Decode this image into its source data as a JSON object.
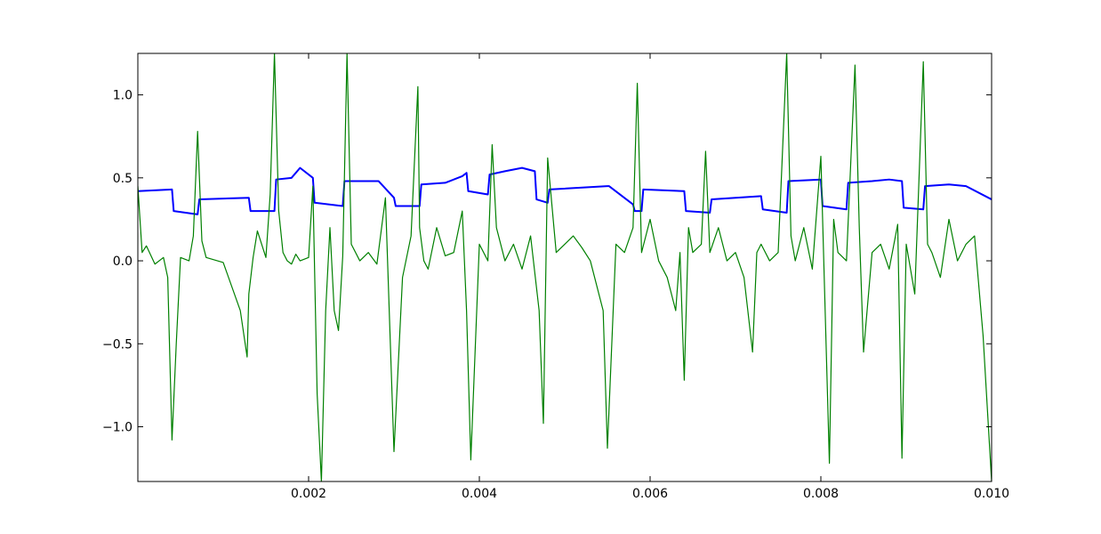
{
  "chart_data": {
    "type": "line",
    "title": "",
    "xlabel": "",
    "ylabel": "",
    "xlim": [
      0.0,
      0.01
    ],
    "ylim": [
      -1.33,
      1.25
    ],
    "grid": false,
    "x_ticks": [
      0.002,
      0.004,
      0.006,
      0.008,
      0.01
    ],
    "x_tick_labels": [
      "0.002",
      "0.004",
      "0.006",
      "0.008",
      "0.010"
    ],
    "y_ticks": [
      1.0,
      0.5,
      0.0,
      -0.5,
      -1.0
    ],
    "y_tick_labels": [
      "1.0",
      "0.5",
      "0.0",
      "−0.5",
      "−1.0"
    ],
    "series": [
      {
        "color": "#0000ff",
        "x": [
          0.0,
          0.0004,
          0.00042,
          0.0007,
          0.00072,
          0.0013,
          0.00132,
          0.0016,
          0.00162,
          0.0018,
          0.0019,
          0.00205,
          0.00207,
          0.0024,
          0.00242,
          0.0028,
          0.00282,
          0.003,
          0.00302,
          0.0033,
          0.00332,
          0.0036,
          0.0038,
          0.00385,
          0.00387,
          0.0041,
          0.00412,
          0.0043,
          0.0045,
          0.00465,
          0.00467,
          0.0048,
          0.00482,
          0.0055,
          0.00552,
          0.0058,
          0.00582,
          0.0059,
          0.00592,
          0.0064,
          0.00642,
          0.0067,
          0.00672,
          0.0073,
          0.00732,
          0.0076,
          0.00762,
          0.008,
          0.00802,
          0.0083,
          0.00832,
          0.0086,
          0.0088,
          0.00895,
          0.00897,
          0.0092,
          0.00922,
          0.0095,
          0.0097,
          0.01
        ],
        "y": [
          0.42,
          0.43,
          0.3,
          0.28,
          0.37,
          0.38,
          0.3,
          0.3,
          0.49,
          0.5,
          0.56,
          0.5,
          0.35,
          0.33,
          0.48,
          0.48,
          0.48,
          0.38,
          0.33,
          0.33,
          0.46,
          0.47,
          0.51,
          0.53,
          0.42,
          0.4,
          0.52,
          0.54,
          0.56,
          0.54,
          0.37,
          0.35,
          0.43,
          0.45,
          0.45,
          0.34,
          0.3,
          0.3,
          0.43,
          0.42,
          0.3,
          0.29,
          0.37,
          0.39,
          0.31,
          0.29,
          0.48,
          0.49,
          0.33,
          0.31,
          0.47,
          0.48,
          0.49,
          0.48,
          0.32,
          0.31,
          0.45,
          0.46,
          0.45,
          0.37
        ]
      },
      {
        "color": "#008000",
        "x": [
          0.0,
          5e-05,
          0.0001,
          0.0002,
          0.0003,
          0.00035,
          0.0004,
          0.00045,
          0.0005,
          0.0006,
          0.00065,
          0.0007,
          0.00075,
          0.0008,
          0.001,
          0.0012,
          0.00128,
          0.0013,
          0.00135,
          0.0014,
          0.0015,
          0.00155,
          0.0016,
          0.00165,
          0.0017,
          0.00175,
          0.0018,
          0.00185,
          0.0019,
          0.002,
          0.00205,
          0.0021,
          0.00215,
          0.0022,
          0.00225,
          0.0023,
          0.00235,
          0.0024,
          0.00245,
          0.0025,
          0.0026,
          0.0027,
          0.0028,
          0.0029,
          0.003,
          0.0031,
          0.0032,
          0.00328,
          0.0033,
          0.00335,
          0.0034,
          0.0035,
          0.0036,
          0.0037,
          0.0038,
          0.00385,
          0.0039,
          0.004,
          0.0041,
          0.00415,
          0.0042,
          0.0043,
          0.0044,
          0.0045,
          0.0046,
          0.0047,
          0.00475,
          0.0048,
          0.0049,
          0.005,
          0.0051,
          0.0052,
          0.0053,
          0.00545,
          0.0055,
          0.0056,
          0.0057,
          0.0058,
          0.00585,
          0.0059,
          0.006,
          0.0061,
          0.0062,
          0.0063,
          0.00635,
          0.0064,
          0.00645,
          0.0065,
          0.0066,
          0.00665,
          0.0067,
          0.0068,
          0.0069,
          0.007,
          0.0071,
          0.0072,
          0.00725,
          0.0073,
          0.0074,
          0.0075,
          0.0076,
          0.00765,
          0.0077,
          0.0078,
          0.0079,
          0.008,
          0.0081,
          0.00815,
          0.0082,
          0.0083,
          0.0084,
          0.00845,
          0.0085,
          0.0086,
          0.0087,
          0.0088,
          0.0089,
          0.00895,
          0.009,
          0.0091,
          0.0092,
          0.00925,
          0.0093,
          0.0094,
          0.0095,
          0.0096,
          0.0097,
          0.0098,
          0.0099,
          0.01
        ],
        "y": [
          0.45,
          0.05,
          0.09,
          -0.02,
          0.02,
          -0.1,
          -1.08,
          -0.5,
          0.02,
          0.0,
          0.15,
          0.78,
          0.12,
          0.02,
          -0.01,
          -0.3,
          -0.58,
          -0.2,
          0.02,
          0.18,
          0.02,
          0.4,
          1.25,
          0.3,
          0.05,
          0.0,
          -0.02,
          0.04,
          0.0,
          0.02,
          0.45,
          -0.8,
          -1.33,
          -0.3,
          0.2,
          -0.3,
          -0.42,
          0.03,
          1.25,
          0.1,
          0.0,
          0.05,
          -0.02,
          0.38,
          -1.15,
          -0.1,
          0.15,
          1.05,
          0.2,
          0.0,
          -0.05,
          0.2,
          0.03,
          0.05,
          0.3,
          -0.3,
          -1.2,
          0.1,
          0.0,
          0.7,
          0.2,
          0.0,
          0.1,
          -0.05,
          0.15,
          -0.3,
          -0.98,
          0.62,
          0.05,
          0.1,
          0.15,
          0.08,
          0.0,
          -0.3,
          -1.13,
          0.1,
          0.05,
          0.2,
          1.07,
          0.05,
          0.25,
          0.0,
          -0.1,
          -0.3,
          0.05,
          -0.72,
          0.2,
          0.05,
          0.1,
          0.66,
          0.05,
          0.2,
          0.0,
          0.05,
          -0.1,
          -0.55,
          0.05,
          0.1,
          0.0,
          0.05,
          1.25,
          0.15,
          0.0,
          0.2,
          -0.05,
          0.63,
          -1.22,
          0.25,
          0.05,
          0.0,
          1.18,
          0.2,
          -0.55,
          0.05,
          0.1,
          -0.05,
          0.22,
          -1.19,
          0.1,
          -0.2,
          1.2,
          0.1,
          0.05,
          -0.1,
          0.25,
          0.0,
          0.1,
          0.15,
          -0.45,
          -1.33
        ]
      }
    ]
  }
}
